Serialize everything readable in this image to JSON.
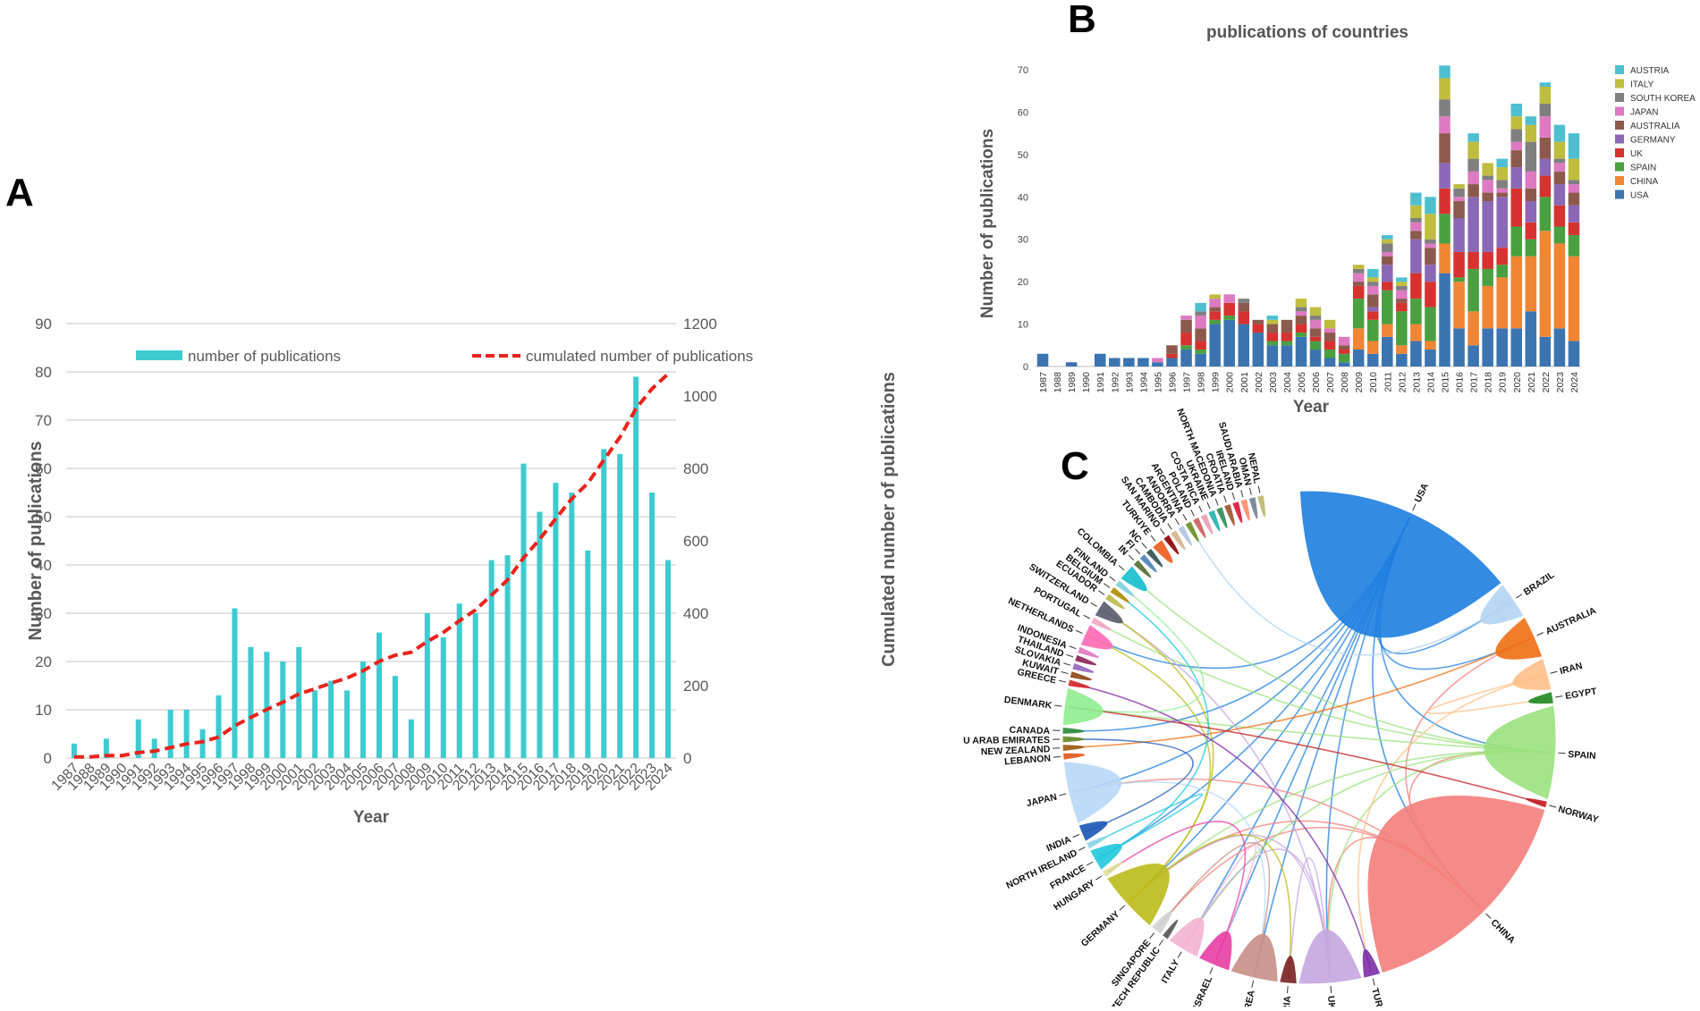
{
  "panels": {
    "a": "A",
    "b": "B",
    "c": "C"
  },
  "chart_data": [
    {
      "id": "A",
      "type": "bar",
      "categories": [
        "1987",
        "1988",
        "1989",
        "1990",
        "1991",
        "1992",
        "1993",
        "1994",
        "1995",
        "1996",
        "1997",
        "1998",
        "1999",
        "2000",
        "2001",
        "2002",
        "2003",
        "2004",
        "2005",
        "2006",
        "2007",
        "2008",
        "2009",
        "2010",
        "2011",
        "2012",
        "2013",
        "2014",
        "2015",
        "2016",
        "2017",
        "2018",
        "2019",
        "2020",
        "2021",
        "2022",
        "2023",
        "2024"
      ],
      "values": [
        3,
        0,
        4,
        0,
        8,
        4,
        10,
        10,
        6,
        13,
        31,
        23,
        22,
        20,
        23,
        14,
        16,
        14,
        20,
        26,
        17,
        8,
        30,
        25,
        32,
        30,
        41,
        42,
        61,
        51,
        57,
        55,
        43,
        64,
        63,
        79,
        55,
        41
      ],
      "cumulative": [
        3,
        3,
        7,
        7,
        15,
        19,
        29,
        39,
        45,
        58,
        89,
        112,
        134,
        154,
        177,
        191,
        207,
        221,
        241,
        267,
        284,
        292,
        322,
        347,
        379,
        409,
        450,
        492,
        553,
        604,
        661,
        716,
        759,
        823,
        886,
        965,
        1020,
        1061
      ],
      "xlabel": "Year",
      "ylabel": "Number of publications",
      "y2label": "Cumulated number of publications",
      "ylim": [
        0,
        90
      ],
      "y2lim": [
        0,
        1200
      ],
      "yticks": [
        0,
        10,
        20,
        30,
        40,
        50,
        60,
        70,
        80,
        90
      ],
      "y2ticks": [
        0,
        200,
        400,
        600,
        800,
        1000,
        1200
      ],
      "legend": [
        "number of publications",
        "cumulated number of publications"
      ],
      "colors": {
        "bar": "#3ecbd0",
        "line": "#e8231c",
        "grid": "#d9d9d9",
        "axis": "#595959"
      }
    },
    {
      "id": "B",
      "type": "bar",
      "stacked": true,
      "title": "publications of countries",
      "xlabel": "Year",
      "ylabel": "Number of publications",
      "ylim": [
        0,
        70
      ],
      "yticks": [
        0,
        10,
        20,
        30,
        40,
        50,
        60,
        70
      ],
      "categories": [
        "1987",
        "1988",
        "1989",
        "1990",
        "1991",
        "1992",
        "1993",
        "1994",
        "1995",
        "1996",
        "1997",
        "1998",
        "1999",
        "2000",
        "2001",
        "2002",
        "2003",
        "2004",
        "2005",
        "2006",
        "2007",
        "2008",
        "2009",
        "2010",
        "2011",
        "2012",
        "2013",
        "2014",
        "2015",
        "2016",
        "2017",
        "2018",
        "2019",
        "2020",
        "2021",
        "2022",
        "2023",
        "2024"
      ],
      "legend_order": [
        "AUSTRIA",
        "ITALY",
        "SOUTH KOREA",
        "JAPAN",
        "AUSTRALIA",
        "GERMANY",
        "UK",
        "SPAIN",
        "CHINA",
        "USA"
      ],
      "series": [
        {
          "name": "USA",
          "color": "#3b74b0",
          "values": [
            3,
            0,
            1,
            0,
            3,
            2,
            2,
            2,
            1,
            2,
            4,
            3,
            10,
            11,
            10,
            8,
            5,
            5,
            7,
            4,
            2,
            1,
            4,
            3,
            7,
            3,
            6,
            4,
            22,
            9,
            5,
            9,
            9,
            9,
            13,
            7,
            9,
            6
          ]
        },
        {
          "name": "CHINA",
          "color": "#f08534",
          "values": [
            0,
            0,
            0,
            0,
            0,
            0,
            0,
            0,
            0,
            0,
            0,
            0,
            0,
            0,
            0,
            0,
            0,
            0,
            0,
            0,
            0,
            0,
            5,
            3,
            3,
            2,
            4,
            2,
            7,
            11,
            8,
            10,
            12,
            17,
            13,
            25,
            20,
            20
          ]
        },
        {
          "name": "SPAIN",
          "color": "#4aa041",
          "values": [
            0,
            0,
            0,
            0,
            0,
            0,
            0,
            0,
            0,
            0,
            1,
            1,
            1,
            1,
            0,
            0,
            1,
            1,
            1,
            2,
            2,
            2,
            7,
            5,
            8,
            8,
            6,
            8,
            7,
            1,
            10,
            4,
            3,
            7,
            4,
            8,
            4,
            5
          ]
        },
        {
          "name": "UK",
          "color": "#d6322f",
          "values": [
            0,
            0,
            0,
            0,
            0,
            0,
            0,
            0,
            0,
            1,
            3,
            2,
            2,
            3,
            3,
            2,
            2,
            2,
            2,
            1,
            2,
            1,
            3,
            2,
            2,
            2,
            6,
            6,
            6,
            6,
            4,
            4,
            4,
            9,
            4,
            5,
            5,
            3
          ]
        },
        {
          "name": "GERMANY",
          "color": "#8b68b6",
          "values": [
            0,
            0,
            0,
            0,
            0,
            0,
            0,
            0,
            0,
            0,
            0,
            0,
            0,
            0,
            0,
            0,
            0,
            0,
            0,
            0,
            0,
            0,
            0,
            1,
            4,
            0,
            8,
            4,
            6,
            8,
            13,
            12,
            12,
            5,
            5,
            4,
            5,
            4
          ]
        },
        {
          "name": "AUSTRALIA",
          "color": "#8c5a4d",
          "values": [
            0,
            0,
            0,
            0,
            0,
            0,
            0,
            0,
            0,
            2,
            3,
            3,
            1,
            0,
            2,
            1,
            2,
            3,
            2,
            2,
            2,
            1,
            1,
            3,
            2,
            1,
            2,
            4,
            7,
            4,
            3,
            2,
            1,
            4,
            3,
            5,
            3,
            3
          ]
        },
        {
          "name": "JAPAN",
          "color": "#dd7ac1",
          "values": [
            0,
            0,
            0,
            0,
            0,
            0,
            0,
            0,
            1,
            0,
            1,
            3,
            2,
            2,
            0,
            0,
            0,
            0,
            1,
            2,
            1,
            2,
            2,
            2,
            1,
            2,
            2,
            1,
            4,
            1,
            3,
            3,
            1,
            2,
            4,
            5,
            2,
            2
          ]
        },
        {
          "name": "SOUTH KOREA",
          "color": "#7f7f7f",
          "values": [
            0,
            0,
            0,
            0,
            0,
            0,
            0,
            0,
            0,
            0,
            0,
            1,
            0,
            0,
            1,
            0,
            0,
            0,
            1,
            1,
            0,
            0,
            1,
            1,
            2,
            1,
            1,
            1,
            4,
            2,
            3,
            1,
            2,
            3,
            7,
            3,
            1,
            1
          ]
        },
        {
          "name": "ITALY",
          "color": "#bfbd3e",
          "values": [
            0,
            0,
            0,
            0,
            0,
            0,
            0,
            0,
            0,
            0,
            0,
            0,
            1,
            0,
            0,
            0,
            1,
            0,
            2,
            2,
            2,
            0,
            1,
            1,
            1,
            1,
            3,
            6,
            5,
            1,
            4,
            3,
            3,
            3,
            4,
            4,
            4,
            5
          ]
        },
        {
          "name": "AUSTRIA",
          "color": "#4fbfd0",
          "values": [
            0,
            0,
            0,
            0,
            0,
            0,
            0,
            0,
            0,
            0,
            0,
            2,
            0,
            0,
            0,
            0,
            1,
            0,
            0,
            0,
            0,
            0,
            0,
            2,
            1,
            1,
            3,
            4,
            3,
            0,
            2,
            0,
            2,
            3,
            2,
            1,
            4,
            6
          ]
        }
      ]
    },
    {
      "id": "C",
      "type": "chord",
      "countries": [
        {
          "name": "USA",
          "color": "#1f7fe0",
          "weight": 44
        },
        {
          "name": "BRAZIL",
          "color": "#b3d4f2",
          "weight": 7
        },
        {
          "name": "AUSTRALIA",
          "color": "#ef6f14",
          "weight": 8
        },
        {
          "name": "IRAN",
          "color": "#ffc08a",
          "weight": 6
        },
        {
          "name": "EGYPT",
          "color": "#1f8a1f",
          "weight": 2
        },
        {
          "name": "SPAIN",
          "color": "#9be27e",
          "weight": 18
        },
        {
          "name": "NORWAY",
          "color": "#c31f24",
          "weight": 1
        },
        {
          "name": "CHINA",
          "color": "#f47f7c",
          "weight": 46
        },
        {
          "name": "TURKEY",
          "color": "#7d2fa8",
          "weight": 3
        },
        {
          "name": "UK",
          "color": "#c6a7e0",
          "weight": 12
        },
        {
          "name": "AUSTRIA",
          "color": "#7b2222",
          "weight": 3
        },
        {
          "name": "SOUTH KOREA",
          "color": "#c89088",
          "weight": 9
        },
        {
          "name": "ISRAEL",
          "color": "#e83fa5",
          "weight": 6
        },
        {
          "name": "ITALY",
          "color": "#f5b3d1",
          "weight": 6
        },
        {
          "name": "CZECH REPUBLIC",
          "color": "#555555",
          "weight": 1
        },
        {
          "name": "SINGAPORE",
          "color": "#d3d3d3",
          "weight": 2
        },
        {
          "name": "GERMANY",
          "color": "#bcbc1a",
          "weight": 12
        },
        {
          "name": "HUNGARY",
          "color": "#e0de9b",
          "weight": 1
        },
        {
          "name": "FRANCE",
          "color": "#21c8de",
          "weight": 4
        },
        {
          "name": "NORTH IRELAND",
          "color": "#8ed6e8",
          "weight": 1
        },
        {
          "name": "INDIA",
          "color": "#1b55b5",
          "weight": 3
        },
        {
          "name": "JAPAN",
          "color": "#b8d8f7",
          "weight": 12
        },
        {
          "name": "LEBANON",
          "color": "#e3571a",
          "weight": 1
        },
        {
          "name": "NEW ZEALAND",
          "color": "#9d5c14",
          "weight": 1
        },
        {
          "name": "U ARAB EMIRATES",
          "color": "#6a8a25",
          "weight": 1
        },
        {
          "name": "CANADA",
          "color": "#2e8b3a",
          "weight": 1
        },
        {
          "name": "DENMARK",
          "color": "#90ee90",
          "weight": 7
        },
        {
          "name": "GREECE",
          "color": "#d62728",
          "weight": 1
        },
        {
          "name": "KUWAIT",
          "color": "#8b4513",
          "weight": 1
        },
        {
          "name": "SLOVAKIA",
          "color": "#9467bd",
          "weight": 1
        },
        {
          "name": "THAILAND",
          "color": "#8b2252",
          "weight": 1
        },
        {
          "name": "INDONESIA",
          "color": "#e377c2",
          "weight": 1
        },
        {
          "name": "NETHERLANDS",
          "color": "#ff69b4",
          "weight": 4
        },
        {
          "name": "PORTUGAL",
          "color": "#f4a6c6",
          "weight": 1
        },
        {
          "name": "SWITZERLAND",
          "color": "#5a5a6e",
          "weight": 3
        },
        {
          "name": "ECUADOR",
          "color": "#b9b94a",
          "weight": 1
        },
        {
          "name": "BELGIUM",
          "color": "#b38f00",
          "weight": 1
        },
        {
          "name": "FINLAND",
          "color": "#7fd0e0",
          "weight": 1
        },
        {
          "name": "COLOMBIA",
          "color": "#17becf",
          "weight": 3
        },
        {
          "name": "IN",
          "color": "#556b2f",
          "weight": 1
        },
        {
          "name": "FI",
          "color": "#4682b4",
          "weight": 1
        },
        {
          "name": "NC",
          "color": "#2f4f4f",
          "weight": 1
        },
        {
          "name": "TURKIYE",
          "color": "#ee5a1a",
          "weight": 2
        },
        {
          "name": "SAN MARINO",
          "color": "#8b0000",
          "weight": 1
        },
        {
          "name": "CAMBODIA",
          "color": "#d2b48c",
          "weight": 1
        },
        {
          "name": "ANDORRA",
          "color": "#b0c4de",
          "weight": 1
        },
        {
          "name": "ARGENTINA",
          "color": "#6b8e23",
          "weight": 1
        },
        {
          "name": "POLAND",
          "color": "#cd5c5c",
          "weight": 1
        },
        {
          "name": "COSTA RICA",
          "color": "#e89fb2",
          "weight": 1
        },
        {
          "name": "UKRAINE",
          "color": "#20b2aa",
          "weight": 1
        },
        {
          "name": "NORTH MACEDONIA",
          "color": "#2e8b57",
          "weight": 1
        },
        {
          "name": "CROATIA",
          "color": "#a0522d",
          "weight": 1
        },
        {
          "name": "IRELAND",
          "color": "#dc143c",
          "weight": 1
        },
        {
          "name": "SAUDI ARABIA",
          "color": "#ff8c69",
          "weight": 1
        },
        {
          "name": "OMAN",
          "color": "#708090",
          "weight": 1
        },
        {
          "name": "NEPAL",
          "color": "#bdb76b",
          "weight": 1
        }
      ],
      "links": [
        [
          "USA",
          "CHINA"
        ],
        [
          "USA",
          "UK"
        ],
        [
          "USA",
          "GERMANY"
        ],
        [
          "USA",
          "SPAIN"
        ],
        [
          "USA",
          "JAPAN"
        ],
        [
          "USA",
          "ITALY"
        ],
        [
          "USA",
          "AUSTRALIA"
        ],
        [
          "USA",
          "SOUTH KOREA"
        ],
        [
          "USA",
          "FRANCE"
        ],
        [
          "USA",
          "CANADA"
        ],
        [
          "USA",
          "ISRAEL"
        ],
        [
          "USA",
          "BRAZIL"
        ],
        [
          "USA",
          "NETHERLANDS"
        ],
        [
          "CHINA",
          "UK"
        ],
        [
          "CHINA",
          "GERMANY"
        ],
        [
          "CHINA",
          "AUSTRALIA"
        ],
        [
          "CHINA",
          "JAPAN"
        ],
        [
          "CHINA",
          "SINGAPORE"
        ],
        [
          "CHINA",
          "SPAIN"
        ],
        [
          "SPAIN",
          "ITALY"
        ],
        [
          "SPAIN",
          "GERMANY"
        ],
        [
          "SPAIN",
          "UK"
        ],
        [
          "SPAIN",
          "DENMARK"
        ],
        [
          "SPAIN",
          "COLOMBIA"
        ],
        [
          "SPAIN",
          "PORTUGAL"
        ],
        [
          "UK",
          "GERMANY"
        ],
        [
          "UK",
          "ITALY"
        ],
        [
          "UK",
          "AUSTRIA"
        ],
        [
          "UK",
          "SWITZERLAND"
        ],
        [
          "GERMANY",
          "AUSTRIA"
        ],
        [
          "GERMANY",
          "SWITZERLAND"
        ],
        [
          "GERMANY",
          "NETHERLANDS"
        ],
        [
          "ITALY",
          "ISRAEL"
        ],
        [
          "JAPAN",
          "SOUTH KOREA"
        ],
        [
          "AUSTRALIA",
          "NEW ZEALAND"
        ],
        [
          "IRAN",
          "TURKEY"
        ],
        [
          "IRAN",
          "EGYPT"
        ],
        [
          "FRANCE",
          "BELGIUM"
        ],
        [
          "INDIA",
          "U ARAB EMIRATES"
        ],
        [
          "TURKEY",
          "GREECE"
        ],
        [
          "DENMARK",
          "FINLAND"
        ],
        [
          "NORWAY",
          "DENMARK"
        ],
        [
          "SOUTH KOREA",
          "SINGAPORE"
        ],
        [
          "BRAZIL",
          "ARGENTINA"
        ],
        [
          "ISRAEL",
          "HUNGARY"
        ],
        [
          "FRANCE",
          "NORTH IRELAND"
        ]
      ]
    }
  ]
}
